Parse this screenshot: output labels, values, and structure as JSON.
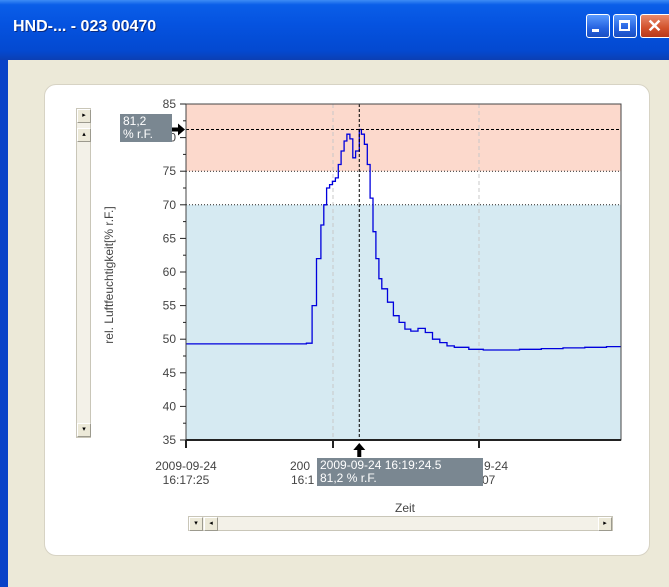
{
  "window": {
    "title": "HND-...  -  023 00470",
    "controls": [
      "minimize",
      "maximize",
      "close"
    ]
  },
  "chart_data": {
    "type": "line",
    "xlabel": "Zeit",
    "ylabel": "rel. Luftfeuchtigkeit[% r.F.]",
    "ylim": [
      35,
      85
    ],
    "y_ticks": [
      "85",
      "80",
      "75",
      "70",
      "65",
      "60",
      "55",
      "50",
      "45",
      "40",
      "35"
    ],
    "x_ticks": [
      {
        "date": "2009-09-24",
        "time": "16:17:25"
      },
      {
        "date": "200",
        "time": "16:1"
      },
      {
        "date": "9-24",
        "time": "07"
      }
    ],
    "bands": [
      {
        "name": "upper",
        "from": 75,
        "to": 85,
        "color": "#fcd9cc"
      },
      {
        "name": "lower",
        "from": 35,
        "to": 70,
        "color": "#d6eaf2"
      }
    ],
    "grid": true,
    "series": [
      {
        "color": "#0000dd",
        "x": [
          "16:17:25",
          "16:17:40",
          "16:17:55",
          "16:18:10",
          "16:18:25",
          "16:18:40",
          "16:18:48",
          "16:18:52",
          "16:18:55",
          "16:18:58",
          "16:19:00",
          "16:19:02",
          "16:19:04",
          "16:19:06",
          "16:19:08",
          "16:19:10",
          "16:19:12",
          "16:19:14",
          "16:19:16",
          "16:19:18",
          "16:19:20",
          "16:19:22",
          "16:19:24.5",
          "16:19:26",
          "16:19:28",
          "16:19:30",
          "16:19:32",
          "16:19:34",
          "16:19:36",
          "16:19:38",
          "16:19:40",
          "16:19:44",
          "16:19:48",
          "16:19:52",
          "16:19:56",
          "16:20:00",
          "16:20:05",
          "16:20:10",
          "16:20:15",
          "16:20:20",
          "16:20:25",
          "16:20:30",
          "16:20:40",
          "16:20:50",
          "16:21:00",
          "16:21:15",
          "16:21:30",
          "16:21:45",
          "16:22:00",
          "16:22:15",
          "16:22:25"
        ],
        "values": [
          49.3,
          49.3,
          49.3,
          49.3,
          49.3,
          49.3,
          49.4,
          55.0,
          62.0,
          67.0,
          70.0,
          72.5,
          73.0,
          73.5,
          74.0,
          76.0,
          78.0,
          79.5,
          80.5,
          79.8,
          77.0,
          78.0,
          81.2,
          80.5,
          79.0,
          76.0,
          71.0,
          66.0,
          62.0,
          59.0,
          57.5,
          55.5,
          53.5,
          52.5,
          51.5,
          51.2,
          51.6,
          51.0,
          50.0,
          49.5,
          49.0,
          48.8,
          48.5,
          48.4,
          48.4,
          48.5,
          48.6,
          48.7,
          48.8,
          48.9,
          48.9
        ]
      }
    ],
    "cursor": {
      "x": "2009-09-24 16:19:24.5",
      "y": 81.2,
      "y_label": "81,2",
      "y_unit": "% r.F.",
      "x_readout": "2009-09-24 16:19:24.5",
      "y_readout": "81,2 % r.F."
    }
  }
}
